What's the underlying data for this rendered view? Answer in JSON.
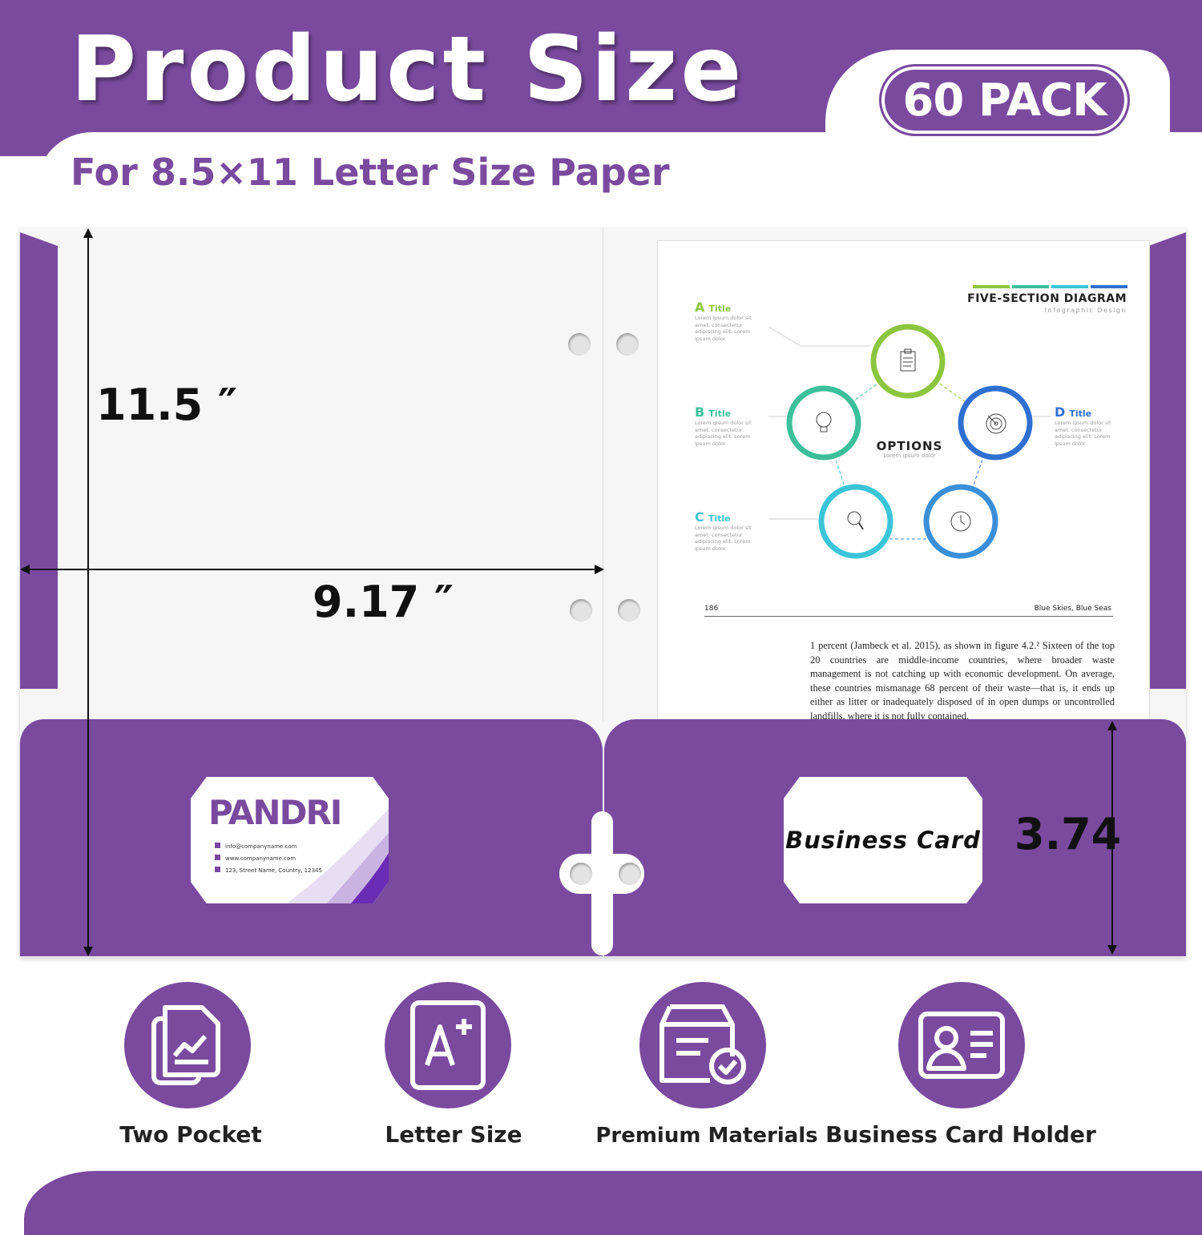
{
  "header": {
    "title": "Product Size",
    "subtitle": "For 8.5×11 Letter Size Paper",
    "badge": "60 PACK"
  },
  "dimensions": {
    "height": "11.5 ″",
    "width": "9.17 ″",
    "pocket_height": "3.74"
  },
  "page": {
    "diagram": {
      "title": "FIVE-SECTION DIAGRAM",
      "subtitle": "Infographic Design",
      "center_title": "OPTIONS",
      "center_subtitle": "Lorem ipsum dolor",
      "items": [
        {
          "letter": "A",
          "label": "Title",
          "text": "Lorem ipsum dolor sit amet, consectetur adipiscing elit. Lorem ipsum dolor.",
          "color": "#8cc63f",
          "icon": "clipboard-icon"
        },
        {
          "letter": "B",
          "label": "Title",
          "text": "Lorem ipsum dolor sit amet, consectetur adipiscing elit. Lorem ipsum dolor.",
          "color": "#3cbf9a",
          "icon": "lightbulb-icon"
        },
        {
          "letter": "C",
          "label": "Title",
          "text": "Lorem ipsum dolor sit amet, consectetur adipiscing elit. Lorem ipsum dolor.",
          "color": "#3bc4d8",
          "icon": "magnifier-icon"
        },
        {
          "letter": "D",
          "label": "Title",
          "text": "Lorem ipsum dolor sit amet, consectetur adipiscing elit. Lorem ipsum dolor.",
          "color": "#2f6fd0",
          "icon": "target-icon"
        }
      ]
    },
    "page_number": "186",
    "running_head": "Blue Skies, Blue Seas",
    "body": "1 percent (Jambeck et al. 2015), as shown in figure 4.2.² Sixteen of the top 20 countries are middle-income countries, where broader waste management is not catching up with economic development. On average, these countries mismanage 68 percent of their waste—that is, it ends up either as litter or inadequately disposed of in open dumps or uncontrolled landfills, where it is not fully contained."
  },
  "business_cards": {
    "left": {
      "brand": "PANDRI",
      "email": "info@companyname.com",
      "website": "www.companyname.com",
      "address": "123, Street Name, Country, 12345"
    },
    "right": {
      "label": "Business Card"
    }
  },
  "features": [
    {
      "label": "Two Pocket",
      "icon": "documents-chart-icon"
    },
    {
      "label": "Letter Size",
      "icon": "letter-a-plus-icon"
    },
    {
      "label": "Premium Materials",
      "icon": "box-check-icon"
    },
    {
      "label": "Business Card Holder",
      "icon": "id-card-icon"
    }
  ],
  "colors": {
    "brand_purple": "#7a4a9f",
    "text_dark": "#111111"
  }
}
